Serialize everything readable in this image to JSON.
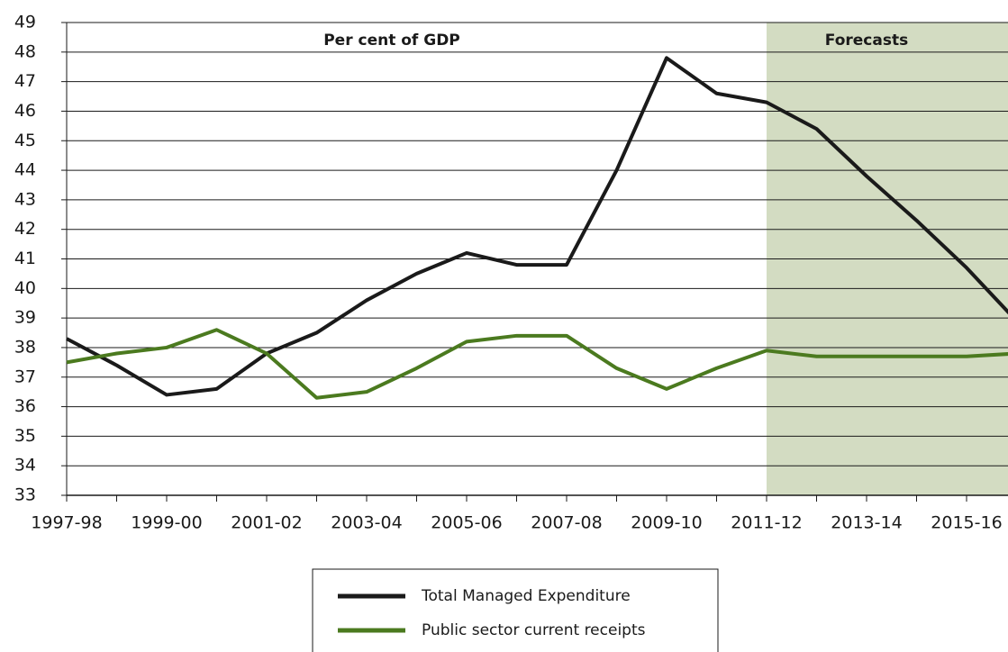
{
  "chart_data": {
    "type": "line",
    "annotations": [
      "Per cent of GDP",
      "Forecasts"
    ],
    "forecast_start": "2011-12",
    "categories": [
      "1997-98",
      null,
      "1999-00",
      null,
      "2001-02",
      null,
      "2003-04",
      null,
      "2005-06",
      null,
      "2007-08",
      null,
      "2009-10",
      null,
      "2011-12",
      null,
      "2013-14",
      null,
      "2015-16",
      null
    ],
    "series": [
      {
        "name": "Total Managed Expenditure",
        "color": "#1a1a1a",
        "values": [
          38.3,
          37.4,
          36.4,
          36.6,
          37.8,
          38.5,
          39.6,
          40.5,
          41.2,
          40.8,
          40.8,
          44.0,
          47.8,
          46.6,
          46.3,
          45.4,
          43.8,
          42.3,
          40.7,
          38.9
        ]
      },
      {
        "name": "Public sector current receipts",
        "color": "#4b7a1f",
        "values": [
          37.5,
          37.8,
          38.0,
          38.6,
          37.8,
          36.3,
          36.5,
          37.3,
          38.2,
          38.4,
          38.4,
          37.3,
          36.6,
          37.3,
          37.9,
          37.7,
          37.7,
          37.7,
          37.7,
          37.8
        ]
      }
    ],
    "ylim": [
      33,
      49
    ],
    "yticks": [
      33,
      34,
      35,
      36,
      37,
      38,
      39,
      40,
      41,
      42,
      43,
      44,
      45,
      46,
      47,
      48,
      49
    ],
    "grid": true,
    "legend": "bottom"
  }
}
